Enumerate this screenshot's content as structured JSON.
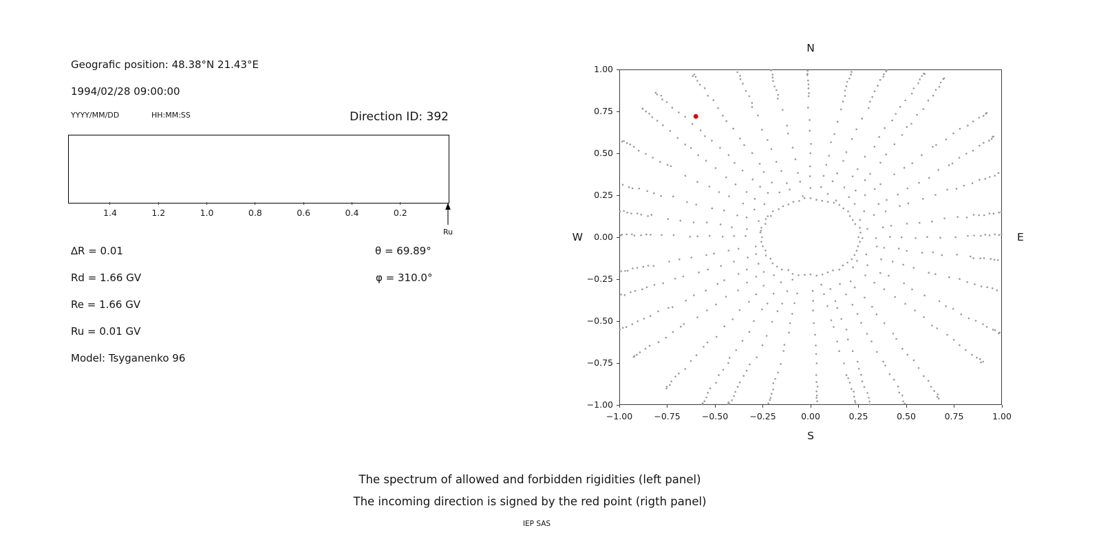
{
  "left_panel": {
    "geo_position": "Geografic position: 48.38°N 21.43°E",
    "datetime": "1994/02/28 09:00:00",
    "date_format_label": "YYYY/MM/DD",
    "time_format_label": "HH:MM:SS",
    "direction_id_label": "Direction ID: 392",
    "params": {
      "delta_r": "∆R = 0.01",
      "theta": "θ = 69.89°",
      "rd": "Rd = 1.66 GV",
      "phi": "φ = 310.0°",
      "re": "Re = 1.66 GV",
      "ru": "Ru = 0.01 GV",
      "model": "Model: Tsyganenko 96"
    }
  },
  "caption": {
    "line1": "The spectrum of allowed and forbidden rigidities (left panel)",
    "line2": "The incoming direction is signed by the red point (rigth panel)",
    "credit": "IEP SAS"
  },
  "chart_data": [
    {
      "id": "rigidity-spectrum",
      "type": "area",
      "title": "",
      "xlabel": "",
      "ylabel": "",
      "xlim": [
        1.57,
        0.0
      ],
      "x_axis_reversed": true,
      "x_ticks": [
        1.4,
        1.2,
        1.0,
        0.8,
        0.6,
        0.4,
        0.2
      ],
      "x_tick_labels": [
        "1.4",
        "1.2",
        "1.0",
        "0.8",
        "0.6",
        "0.4",
        "0.2"
      ],
      "series": [],
      "annotations": {
        "arrow_label": "Ru",
        "arrow_x": 0.01
      }
    },
    {
      "id": "incoming-direction",
      "type": "scatter",
      "title": "",
      "xlim": [
        -1.0,
        1.0
      ],
      "ylim": [
        -1.0,
        1.0
      ],
      "x_ticks": [
        -1.0,
        -0.75,
        -0.5,
        -0.25,
        0.0,
        0.25,
        0.5,
        0.75,
        1.0
      ],
      "x_tick_labels": [
        "−1.00",
        "−0.75",
        "−0.50",
        "−0.25",
        "0.00",
        "0.25",
        "0.50",
        "0.75",
        "1.00"
      ],
      "y_ticks": [
        -1.0,
        -0.75,
        -0.5,
        -0.25,
        0.0,
        0.25,
        0.5,
        0.75,
        1.0
      ],
      "y_tick_labels": [
        "−1.00",
        "−0.75",
        "−0.50",
        "−0.25",
        "0.00",
        "0.25",
        "0.50",
        "0.75",
        "1.00"
      ],
      "compass": {
        "top": "N",
        "bottom": "S",
        "left": "W",
        "right": "E"
      },
      "red_point": {
        "x": -0.6,
        "y": 0.72,
        "color": "#e00000"
      },
      "dots": {
        "color": "#999999",
        "radius_px": 1.3,
        "pattern": "radial-spokes",
        "spoke_count": 36,
        "spoke_start_r": 0.3,
        "dense_start_r": 0.86,
        "outer_r_cardinal": 1.02,
        "outer_r_diagonal": 1.18,
        "points_per_spoke_sparse": 9,
        "points_per_spoke_dense": 10,
        "inner_ring_r": 0.245,
        "inner_ring_points": 52
      }
    }
  ]
}
